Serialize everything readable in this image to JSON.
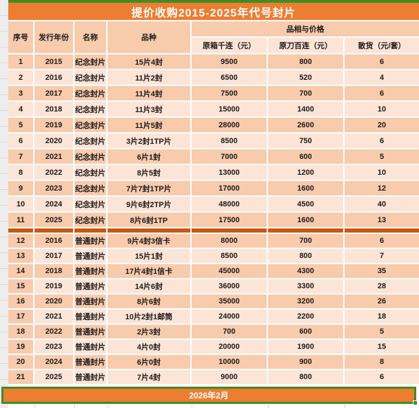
{
  "title": "提价收购2015-2025年代号封片",
  "columns": {
    "serial": "序号",
    "year": "发行年份",
    "name": "名称",
    "variety": "品种",
    "price_group": "品相与价格",
    "case_price": "原箱千连（元）",
    "bundle_price": "原刀百连（元）",
    "loose_price": "散货（元/套）"
  },
  "groups": [
    {
      "id": "commemorative",
      "serial_always_dark": false,
      "rows": [
        [
          "1",
          "2015",
          "纪念封片",
          "15片4封",
          "9500",
          "800",
          "6"
        ],
        [
          "2",
          "2016",
          "纪念封片",
          "11片2封",
          "6500",
          "520",
          "4"
        ],
        [
          "3",
          "2017",
          "纪念封片",
          "11片4封",
          "7500",
          "700",
          "6"
        ],
        [
          "4",
          "2018",
          "纪念封片",
          "11片3封",
          "15000",
          "1400",
          "10"
        ],
        [
          "5",
          "2019",
          "纪念封片",
          "11片5封",
          "28000",
          "2600",
          "20"
        ],
        [
          "6",
          "2020",
          "纪念封片",
          "3片2封1TP片",
          "8500",
          "750",
          "6"
        ],
        [
          "7",
          "2021",
          "纪念封片",
          "6片1封",
          "7000",
          "600",
          "5"
        ],
        [
          "8",
          "2022",
          "纪念封片",
          "8片5封",
          "13000",
          "1200",
          "10"
        ],
        [
          "9",
          "2023",
          "纪念封片",
          "7片7封1TP片",
          "17000",
          "1600",
          "12"
        ],
        [
          "10",
          "2024",
          "纪念封片",
          "9片6封2TP片",
          "48000",
          "4500",
          "40"
        ],
        [
          "11",
          "2025",
          "纪念封片",
          "8片6封1TP",
          "17500",
          "1600",
          "13"
        ]
      ]
    },
    {
      "id": "ordinary",
      "serial_always_dark": true,
      "rows": [
        [
          "12",
          "2016",
          "普通封片",
          "9片4封3信卡",
          "8000",
          "700",
          "6"
        ],
        [
          "13",
          "2017",
          "普通封片",
          "15片1封",
          "8500",
          "800",
          "7"
        ],
        [
          "14",
          "2018",
          "普通封片",
          "17片4封1信卡",
          "45000",
          "4300",
          "35"
        ],
        [
          "15",
          "2019",
          "普通封片",
          "14片6封",
          "36000",
          "3300",
          "28"
        ],
        [
          "16",
          "2020",
          "普通封片",
          "8片6封",
          "35000",
          "3200",
          "26"
        ],
        [
          "17",
          "2021",
          "普通封片",
          "10片2封1邮筒",
          "24000",
          "2200",
          "18"
        ],
        [
          "18",
          "2022",
          "普通封片",
          "2片3封",
          "700",
          "600",
          "5"
        ],
        [
          "19",
          "2023",
          "普通封片",
          "4片0封",
          "20000",
          "1900",
          "15"
        ],
        [
          "20",
          "2024",
          "普通封片",
          "6片0封",
          "10000",
          "900",
          "8"
        ],
        [
          "21",
          "2025",
          "普通封片",
          "7片4封",
          "9000",
          "800",
          "6"
        ]
      ]
    }
  ],
  "footer": {
    "label": "2026年2月"
  },
  "colors": {
    "accent_orange": "#ED7D31",
    "peach_dark": "#F8CBAD",
    "peach_light": "#FCE4D6",
    "divider_orange": "#C55A11",
    "selection_green": "#3E8D23",
    "text": "#1A1A1A",
    "title_text": "#FFFFFF"
  },
  "column_cell_names": [
    "cell-serial",
    "cell-year",
    "cell-name",
    "cell-variety",
    "cell-case-price",
    "cell-bundle-price",
    "cell-loose-price"
  ]
}
